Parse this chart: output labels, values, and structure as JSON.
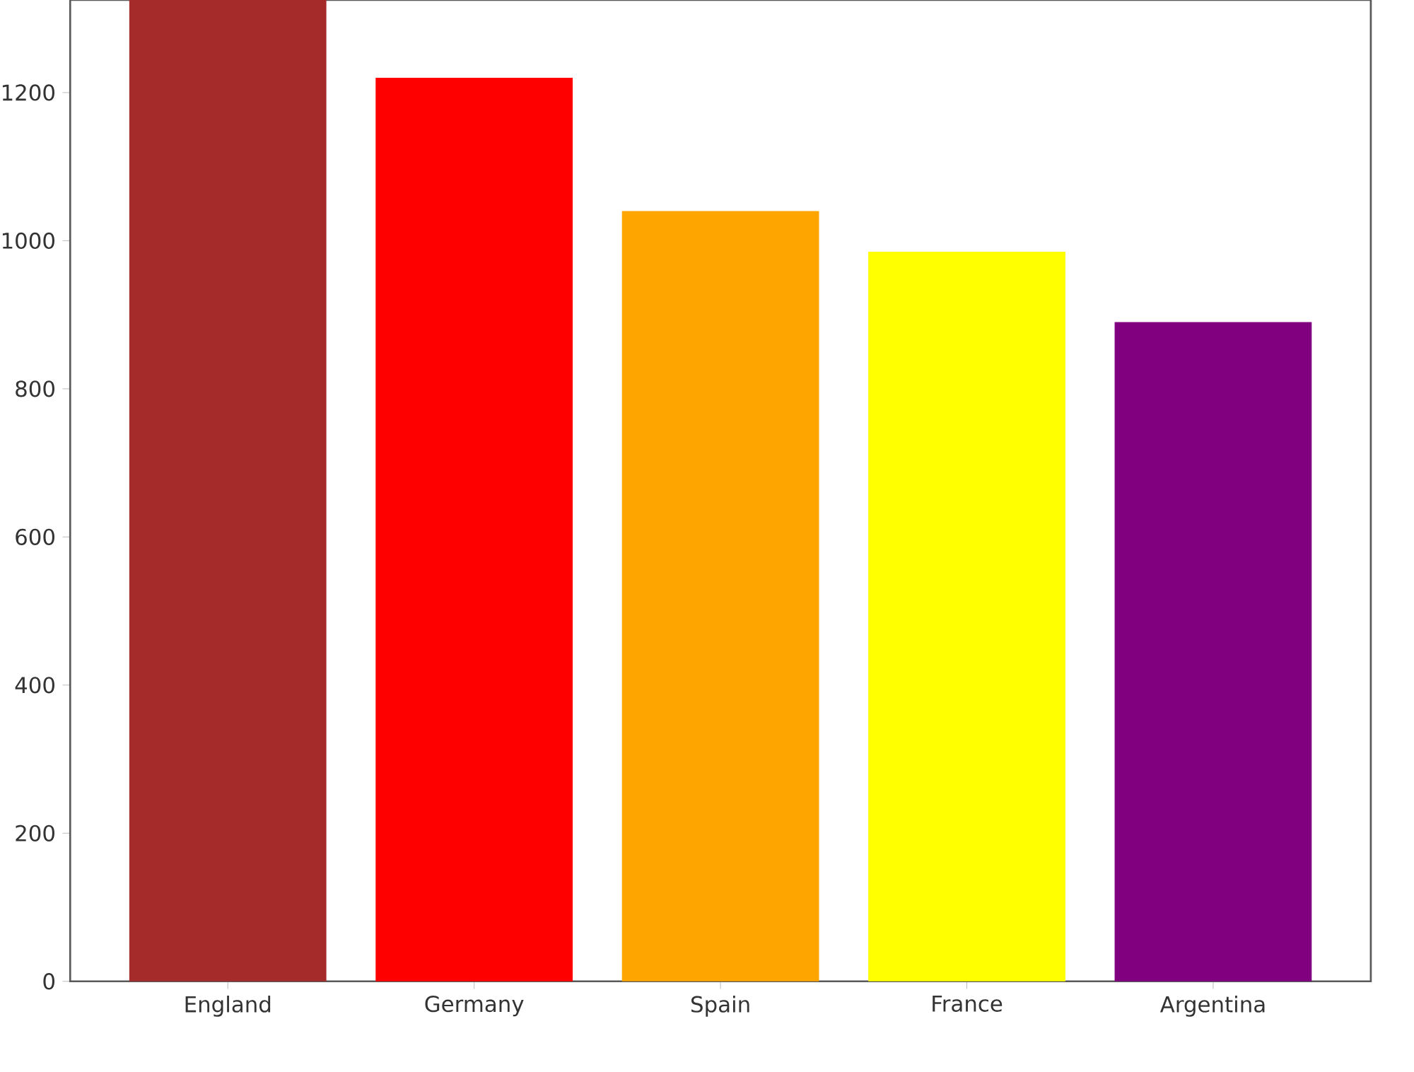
{
  "chart_data": {
    "type": "bar",
    "categories": [
      "England",
      "Germany",
      "Spain",
      "France",
      "Argentina"
    ],
    "values": [
      1325,
      1220,
      1040,
      985,
      890
    ],
    "colors": [
      "#a52a2a",
      "#ff0000",
      "#ffa500",
      "#ffff00",
      "#800080"
    ],
    "ylim": [
      0,
      1325
    ],
    "yticks": [
      0,
      200,
      400,
      600,
      800,
      1000,
      1200
    ],
    "grid": false
  }
}
